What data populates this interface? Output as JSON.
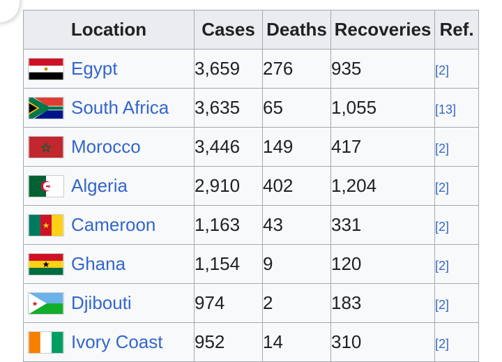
{
  "header": {
    "location": "Location",
    "cases": "Cases",
    "deaths": "Deaths",
    "recoveries": "Recoveries",
    "ref": "Ref."
  },
  "rows": [
    {
      "country": "Egypt",
      "flag_icon": "egypt-flag-icon",
      "cases": "3,659",
      "deaths": "276",
      "recoveries": "935",
      "ref": "[2]"
    },
    {
      "country": "South Africa",
      "flag_icon": "south-africa-flag-icon",
      "cases": "3,635",
      "deaths": "65",
      "recoveries": "1,055",
      "ref": "[13]"
    },
    {
      "country": "Morocco",
      "flag_icon": "morocco-flag-icon",
      "cases": "3,446",
      "deaths": "149",
      "recoveries": "417",
      "ref": "[2]"
    },
    {
      "country": "Algeria",
      "flag_icon": "algeria-flag-icon",
      "cases": "2,910",
      "deaths": "402",
      "recoveries": "1,204",
      "ref": "[2]"
    },
    {
      "country": "Cameroon",
      "flag_icon": "cameroon-flag-icon",
      "cases": "1,163",
      "deaths": "43",
      "recoveries": "331",
      "ref": "[2]"
    },
    {
      "country": "Ghana",
      "flag_icon": "ghana-flag-icon",
      "cases": "1,154",
      "deaths": "9",
      "recoveries": "120",
      "ref": "[2]"
    },
    {
      "country": "Djibouti",
      "flag_icon": "djibouti-flag-icon",
      "cases": "974",
      "deaths": "2",
      "recoveries": "183",
      "ref": "[2]"
    },
    {
      "country": "Ivory Coast",
      "flag_icon": "ivory-coast-flag-icon",
      "cases": "952",
      "deaths": "14",
      "recoveries": "310",
      "ref": "[2]"
    }
  ],
  "colors": {
    "link": "#3366cc",
    "header_bg": "#eaecf0",
    "cell_bg": "#f8f9fa",
    "border": "#a2a9b1"
  }
}
